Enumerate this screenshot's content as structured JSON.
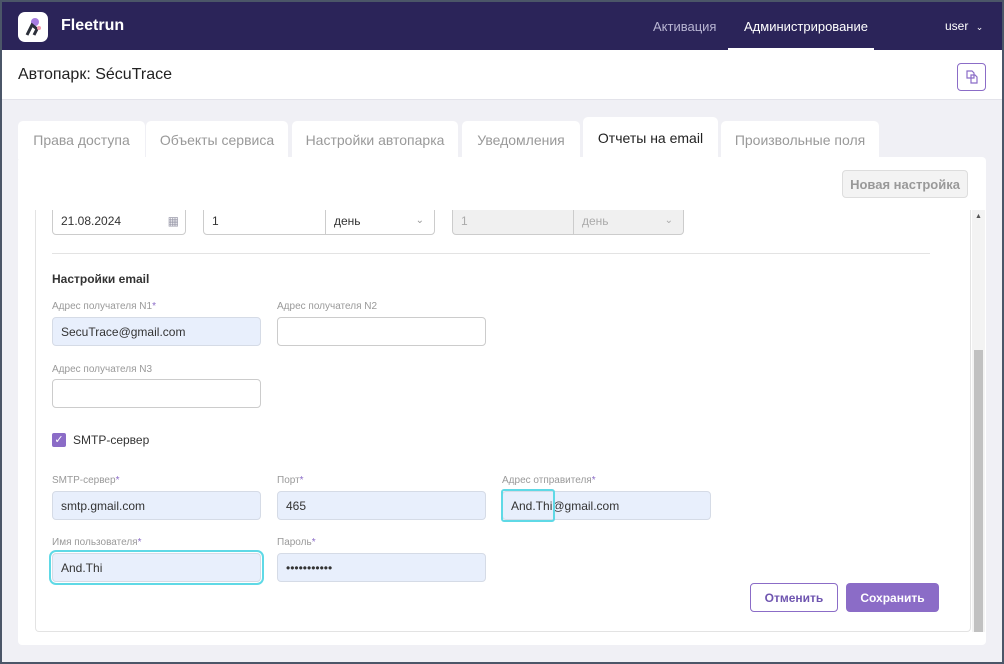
{
  "app": {
    "name": "Fleetrun"
  },
  "nav": {
    "items": [
      {
        "label": "Активация"
      },
      {
        "label": "Администрирование"
      }
    ],
    "user": "user"
  },
  "page": {
    "title": "Автопарк: SécuTrace"
  },
  "tabs": [
    {
      "label": "Права доступа"
    },
    {
      "label": "Объекты сервиса"
    },
    {
      "label": "Настройки автопарка"
    },
    {
      "label": "Уведомления"
    },
    {
      "label": "Отчеты на email"
    },
    {
      "label": "Произвольные поля"
    }
  ],
  "toolbar": {
    "new_label": "Новая настройка"
  },
  "schedule": {
    "date": "21.08.2024",
    "interval": "1",
    "unit": "день",
    "interval2": "1",
    "unit2": "день"
  },
  "email": {
    "section": "Настройки email",
    "r1_label": "Адрес получателя N1",
    "r1": "SecuTrace@gmail.com",
    "r2_label": "Адрес получателя N2",
    "r2": "",
    "r3_label": "Адрес получателя N3",
    "r3": "",
    "smtp_checkbox": "SMTP-сервер",
    "smtp_checked": true
  },
  "smtp": {
    "server_label": "SMTP-сервер",
    "server": "smtp.gmail.com",
    "port_label": "Порт",
    "port": "465",
    "sender_label": "Адрес отправителя",
    "sender": "And.Thi@gmail.com",
    "user_label": "Имя пользователя",
    "user": "And.Thi",
    "pass_label": "Пароль",
    "pass": "•••••••••••"
  },
  "actions": {
    "cancel": "Отменить",
    "save": "Сохранить"
  },
  "colors": {
    "header": "#2b2459",
    "accent": "#8b6cc7",
    "focus": "#5fd9e6"
  }
}
